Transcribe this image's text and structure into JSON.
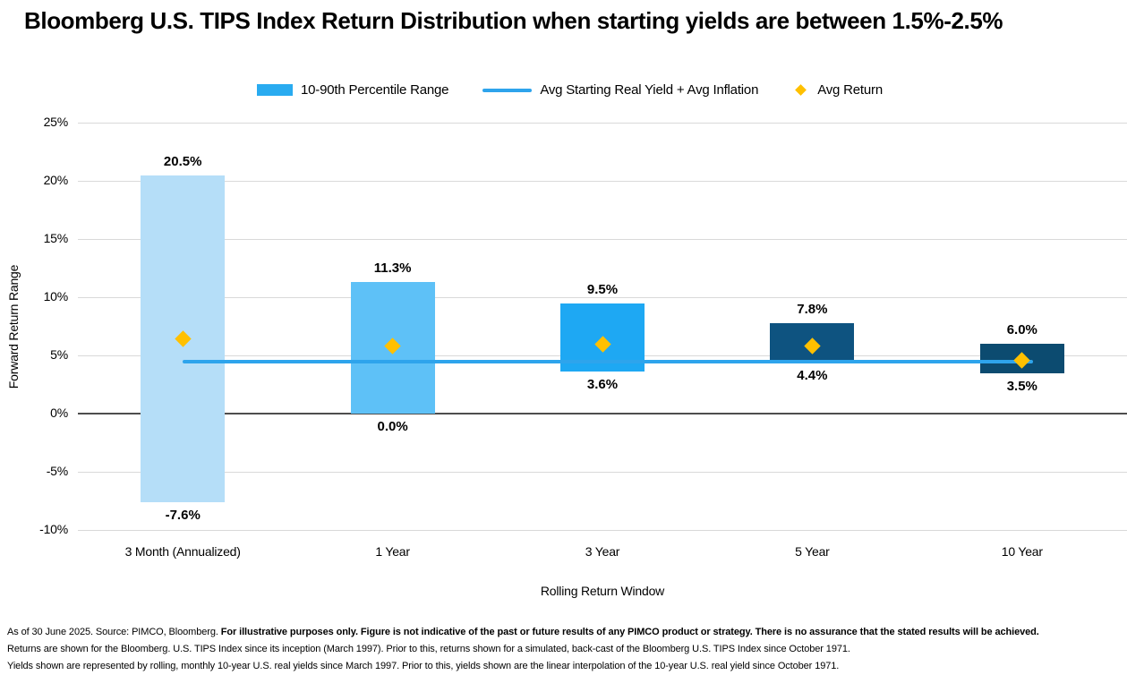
{
  "title": "Bloomberg U.S. TIPS Index Return Distribution when starting yields are between 1.5%-2.5%",
  "legend": {
    "bar_label": "10-90th Percentile Range",
    "line_label": "Avg Starting Real Yield + Avg Inflation",
    "diamond_label": "Avg Return"
  },
  "colors": {
    "bar_colors": [
      "#B5DEF8",
      "#5EC1F7",
      "#1EA8F3",
      "#0E5380",
      "#0C4B70"
    ],
    "legend_bar": "#29ABF0",
    "line": "#2EA4EC",
    "diamond": "#FFC000",
    "gridline": "#D9D9D9",
    "zero_line": "#4D4D4D",
    "text": "#000000"
  },
  "chart_data": {
    "type": "bar",
    "title": "Bloomberg U.S. TIPS Index Return Distribution when starting yields are between 1.5%-2.5%",
    "categories": [
      "3 Month (Annualized)",
      "1 Year",
      "3 Year",
      "5 Year",
      "10 Year"
    ],
    "series": [
      {
        "name": "10-90th Percentile Range",
        "type": "range-bar",
        "high": [
          20.5,
          11.3,
          9.5,
          7.8,
          6.0
        ],
        "low": [
          -7.6,
          0.0,
          3.6,
          4.4,
          3.5
        ]
      },
      {
        "name": "Avg Starting Real Yield + Avg Inflation",
        "type": "line",
        "value": 4.5
      },
      {
        "name": "Avg Return",
        "type": "point",
        "values": [
          6.4,
          5.8,
          6.0,
          5.8,
          4.6
        ]
      }
    ],
    "high_labels": [
      "20.5%",
      "11.3%",
      "9.5%",
      "7.8%",
      "6.0%"
    ],
    "low_labels": [
      "-7.6%",
      "0.0%",
      "3.6%",
      "4.4%",
      "3.5%"
    ],
    "xlabel": "Rolling Return Window",
    "ylabel": "Forward Return Range",
    "ylim": [
      -10,
      25
    ],
    "ytick_values": [
      25,
      20,
      15,
      10,
      5,
      0,
      -5,
      -10
    ],
    "ytick_labels": [
      "25%",
      "20%",
      "15%",
      "10%",
      "5%",
      "0%",
      "-5%",
      "-10%"
    ],
    "grid": true,
    "legend_position": "top"
  },
  "footer": {
    "line1_normal": "As of 30 June 2025. Source: PIMCO, Bloomberg. ",
    "line1_bold": "For illustrative purposes only. Figure is not indicative of the past or future results of any PIMCO product or strategy. There is no assurance that the stated results will be achieved.",
    "line2": "Returns are shown for the Bloomberg. U.S. TIPS Index since its inception (March 1997). Prior to this, returns shown for a simulated, back-cast of the Bloomberg U.S. TIPS Index since October 1971.",
    "line3": "Yields shown are represented by rolling, monthly 10-year U.S. real yields since March 1997. Prior to this, yields shown are the linear interpolation of the 10-year U.S. real yield since October 1971."
  }
}
